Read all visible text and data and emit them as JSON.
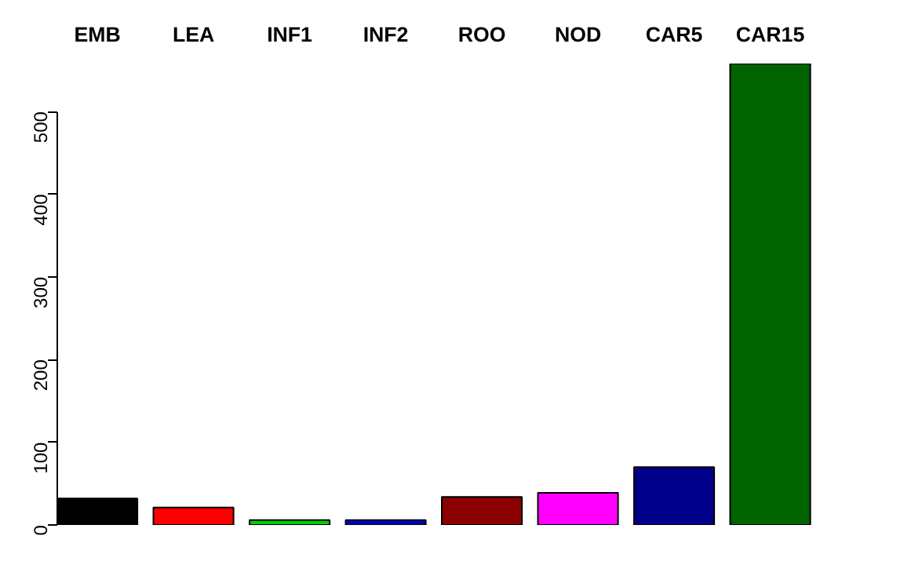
{
  "chart_data": {
    "type": "bar",
    "categories": [
      "EMB",
      "LEA",
      "INF1",
      "INF2",
      "ROO",
      "NOD",
      "CAR5",
      "CAR15"
    ],
    "values": [
      32,
      21,
      6,
      6,
      34,
      39,
      70,
      558
    ],
    "colors": [
      "#000000",
      "#ff0000",
      "#00cd00",
      "#0000cd",
      "#8b0000",
      "#ff00ff",
      "#00008b",
      "#006400"
    ],
    "ylim": [
      0,
      558
    ],
    "yticks": [
      0,
      100,
      200,
      300,
      400,
      500
    ],
    "grid": false
  }
}
